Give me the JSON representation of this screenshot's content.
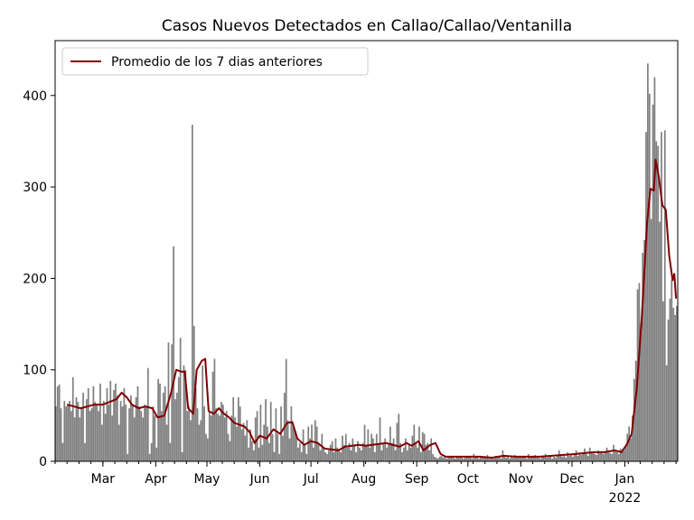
{
  "chart_data": {
    "type": "bar",
    "title": "Casos Nuevos Detectados en Callao/Callao/Ventanilla",
    "xlabel": "",
    "ylabel": "",
    "ylim": [
      0,
      460
    ],
    "x_range": [
      "2021-02-01",
      "2022-01-31"
    ],
    "y_ticks": [
      0,
      100,
      200,
      300,
      400
    ],
    "y_tick_labels": [
      "0",
      "100",
      "200",
      "300",
      "400"
    ],
    "x_ticks": [
      {
        "date": "2021-03-01",
        "label": "Mar"
      },
      {
        "date": "2021-04-01",
        "label": "Apr"
      },
      {
        "date": "2021-05-01",
        "label": "May"
      },
      {
        "date": "2021-06-01",
        "label": "Jun"
      },
      {
        "date": "2021-07-01",
        "label": "Jul"
      },
      {
        "date": "2021-08-01",
        "label": "Aug"
      },
      {
        "date": "2021-09-01",
        "label": "Sep"
      },
      {
        "date": "2021-10-01",
        "label": "Oct"
      },
      {
        "date": "2021-11-01",
        "label": "Nov"
      },
      {
        "date": "2021-12-01",
        "label": "Dec"
      },
      {
        "date": "2022-01-01",
        "label": "Jan"
      }
    ],
    "x_year_label": "2022",
    "legend": {
      "position": "top-left"
    },
    "series": [
      {
        "name": "",
        "kind": "bar",
        "color": "#808080",
        "start_date": "2021-02-01",
        "values": [
          60,
          82,
          84,
          58,
          20,
          66,
          60,
          62,
          66,
          55,
          92,
          48,
          70,
          65,
          48,
          58,
          75,
          20,
          68,
          80,
          55,
          58,
          82,
          65,
          62,
          55,
          85,
          40,
          66,
          52
        ],
        "values_note": "",
        "monthly": {
          "Feb": [
            60,
            82,
            84,
            58,
            20,
            66,
            60,
            62,
            66,
            55,
            92,
            48,
            70,
            65,
            48,
            58,
            75,
            20,
            68,
            80,
            55,
            58,
            82,
            65,
            62,
            55,
            85,
            40
          ],
          "Mar": [
            66,
            52,
            80,
            62,
            88,
            50,
            78,
            85,
            72,
            40,
            66,
            60,
            80,
            62,
            8,
            58,
            72,
            62,
            48,
            70,
            82,
            60,
            55,
            48,
            62,
            60,
            102,
            8,
            20,
            60,
            50
          ],
          "Apr": [
            15,
            90,
            85,
            55,
            75,
            82,
            40,
            130,
            20,
            128,
            235,
            68,
            75,
            92,
            135,
            10,
            105,
            100,
            55,
            60,
            45,
            368,
            148,
            80,
            58,
            40,
            45,
            105,
            60,
            30
          ],
          "May": [
            25,
            55,
            50,
            98,
            112,
            58,
            52,
            50,
            65,
            62,
            48,
            55,
            30,
            22,
            50,
            70,
            48,
            38,
            70,
            60,
            35,
            42,
            28,
            45,
            15,
            35,
            22,
            12,
            48,
            55,
            15
          ],
          "Jun": [
            62,
            18,
            40,
            68,
            38,
            20,
            65,
            30,
            10,
            58,
            30,
            8,
            60,
            28,
            75,
            112,
            45,
            25,
            60,
            38,
            35,
            28,
            15,
            20,
            10,
            35,
            18,
            8,
            38,
            25
          ],
          "Jul": [
            40,
            15,
            45,
            38,
            20,
            12,
            30,
            15,
            10,
            8,
            12,
            18,
            22,
            10,
            25,
            15,
            12,
            10,
            28,
            18,
            30,
            15,
            20,
            12,
            25,
            18,
            10,
            22,
            15,
            12,
            20
          ],
          "Aug": [
            40,
            18,
            35,
            15,
            30,
            25,
            10,
            30,
            18,
            48,
            12,
            20,
            25,
            15,
            18,
            38,
            20,
            25,
            12,
            42,
            52,
            20,
            10,
            15,
            25,
            12,
            18,
            15,
            28,
            40,
            20
          ],
          "Sep": [
            15,
            38,
            10,
            32,
            30,
            18,
            20,
            12,
            25,
            8,
            5,
            4,
            3,
            5,
            6,
            4,
            5,
            3,
            4,
            6,
            5,
            4,
            3,
            5,
            4,
            6,
            5,
            3,
            4,
            5
          ],
          "Oct": [
            4,
            5,
            3,
            8,
            4,
            5,
            3,
            6,
            4,
            5,
            4,
            7,
            3,
            5,
            4,
            3,
            6,
            4,
            5,
            3,
            12,
            5,
            4,
            6,
            3,
            5,
            4,
            7,
            5,
            4,
            6
          ],
          "Nov": [
            4,
            6,
            5,
            3,
            8,
            4,
            5,
            6,
            7,
            4,
            5,
            3,
            6,
            5,
            8,
            4,
            5,
            6,
            3,
            5,
            4,
            6,
            12,
            8,
            5,
            7,
            4,
            10,
            6,
            8
          ],
          "Dec": [
            5,
            8,
            12,
            6,
            9,
            7,
            10,
            14,
            8,
            6,
            15,
            9,
            10,
            8,
            7,
            12,
            9,
            11,
            8,
            10,
            15,
            12,
            9,
            8,
            18,
            12,
            10,
            8,
            14,
            10,
            12
          ],
          "Jan": [
            15,
            30,
            38,
            25,
            50,
            90,
            110,
            188,
            195,
            150,
            228,
            242,
            360,
            435,
            402,
            265,
            390,
            420,
            350,
            345,
            262,
            360,
            175,
            362,
            105,
            155,
            178,
            198,
            168,
            160,
            170
          ]
        }
      },
      {
        "name": "Promedio de los 7 dias anteriores",
        "kind": "line",
        "color": "#800000",
        "points": [
          [
            "2021-02-08",
            62
          ],
          [
            "2021-02-12",
            60
          ],
          [
            "2021-02-16",
            58
          ],
          [
            "2021-02-20",
            60
          ],
          [
            "2021-02-24",
            62
          ],
          [
            "2021-03-01",
            62
          ],
          [
            "2021-03-05",
            65
          ],
          [
            "2021-03-09",
            68
          ],
          [
            "2021-03-12",
            75
          ],
          [
            "2021-03-15",
            70
          ],
          [
            "2021-03-18",
            62
          ],
          [
            "2021-03-22",
            58
          ],
          [
            "2021-03-26",
            60
          ],
          [
            "2021-03-30",
            58
          ],
          [
            "2021-04-02",
            48
          ],
          [
            "2021-04-06",
            50
          ],
          [
            "2021-04-10",
            75
          ],
          [
            "2021-04-13",
            100
          ],
          [
            "2021-04-16",
            98
          ],
          [
            "2021-04-18",
            98
          ],
          [
            "2021-04-20",
            58
          ],
          [
            "2021-04-23",
            52
          ],
          [
            "2021-04-25",
            100
          ],
          [
            "2021-04-28",
            110
          ],
          [
            "2021-04-30",
            112
          ],
          [
            "2021-05-02",
            55
          ],
          [
            "2021-05-05",
            52
          ],
          [
            "2021-05-08",
            58
          ],
          [
            "2021-05-11",
            52
          ],
          [
            "2021-05-14",
            48
          ],
          [
            "2021-05-17",
            42
          ],
          [
            "2021-05-20",
            40
          ],
          [
            "2021-05-23",
            38
          ],
          [
            "2021-05-26",
            32
          ],
          [
            "2021-05-29",
            20
          ],
          [
            "2021-06-01",
            28
          ],
          [
            "2021-06-05",
            25
          ],
          [
            "2021-06-09",
            35
          ],
          [
            "2021-06-13",
            30
          ],
          [
            "2021-06-17",
            42
          ],
          [
            "2021-06-20",
            43
          ],
          [
            "2021-06-23",
            25
          ],
          [
            "2021-06-27",
            18
          ],
          [
            "2021-07-01",
            22
          ],
          [
            "2021-07-05",
            20
          ],
          [
            "2021-07-09",
            14
          ],
          [
            "2021-07-13",
            13
          ],
          [
            "2021-07-17",
            12
          ],
          [
            "2021-07-21",
            16
          ],
          [
            "2021-07-25",
            17
          ],
          [
            "2021-07-29",
            18
          ],
          [
            "2021-08-02",
            17
          ],
          [
            "2021-08-06",
            18
          ],
          [
            "2021-08-10",
            19
          ],
          [
            "2021-08-14",
            20
          ],
          [
            "2021-08-18",
            18
          ],
          [
            "2021-08-22",
            16
          ],
          [
            "2021-08-26",
            20
          ],
          [
            "2021-08-29",
            17
          ],
          [
            "2021-09-02",
            22
          ],
          [
            "2021-09-05",
            12
          ],
          [
            "2021-09-09",
            18
          ],
          [
            "2021-09-12",
            20
          ],
          [
            "2021-09-15",
            8
          ],
          [
            "2021-09-18",
            5
          ],
          [
            "2021-09-24",
            5
          ],
          [
            "2021-10-01",
            5
          ],
          [
            "2021-10-08",
            5
          ],
          [
            "2021-10-15",
            4
          ],
          [
            "2021-10-22",
            6
          ],
          [
            "2021-10-29",
            5
          ],
          [
            "2021-11-05",
            5
          ],
          [
            "2021-11-12",
            5
          ],
          [
            "2021-11-19",
            6
          ],
          [
            "2021-11-26",
            7
          ],
          [
            "2021-12-03",
            8
          ],
          [
            "2021-12-08",
            9
          ],
          [
            "2021-12-14",
            10
          ],
          [
            "2021-12-20",
            10
          ],
          [
            "2021-12-26",
            12
          ],
          [
            "2021-12-30",
            10
          ],
          [
            "2022-01-02",
            18
          ],
          [
            "2022-01-05",
            30
          ],
          [
            "2022-01-08",
            80
          ],
          [
            "2022-01-11",
            160
          ],
          [
            "2022-01-14",
            260
          ],
          [
            "2022-01-16",
            298
          ],
          [
            "2022-01-18",
            296
          ],
          [
            "2022-01-19",
            330
          ],
          [
            "2022-01-21",
            310
          ],
          [
            "2022-01-23",
            280
          ],
          [
            "2022-01-25",
            275
          ],
          [
            "2022-01-27",
            225
          ],
          [
            "2022-01-29",
            198
          ],
          [
            "2022-01-30",
            205
          ],
          [
            "2022-01-31",
            178
          ]
        ]
      }
    ]
  }
}
